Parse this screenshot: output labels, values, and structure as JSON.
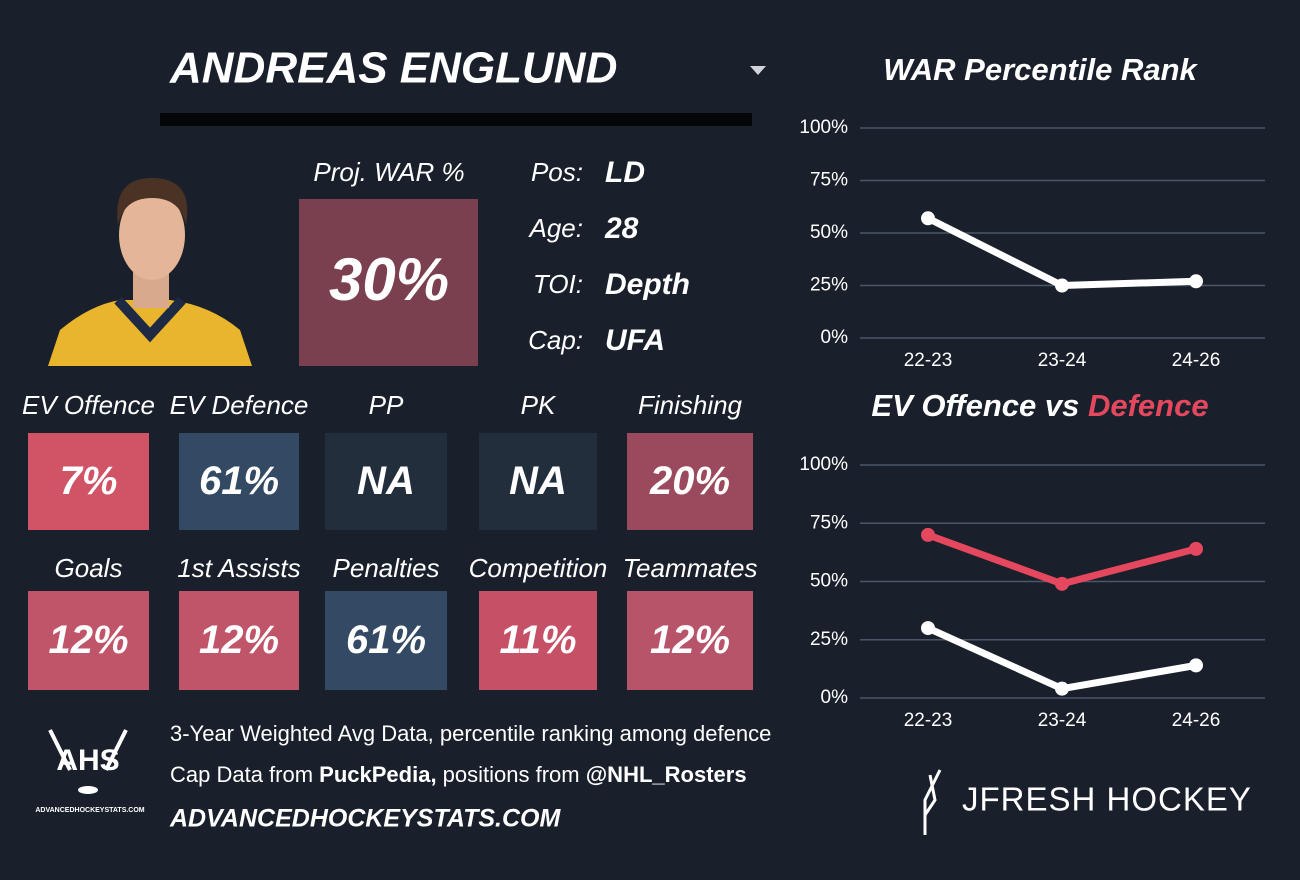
{
  "header": {
    "player": "ANDREAS ENGLUND"
  },
  "proj_war": {
    "label": "Proj. WAR %",
    "value": "30%",
    "color": "#7a4050"
  },
  "bio": [
    {
      "label": "Pos:",
      "value": "LD"
    },
    {
      "label": "Age:",
      "value": "28"
    },
    {
      "label": "TOI:",
      "value": "Depth"
    },
    {
      "label": "Cap:",
      "value": "UFA"
    }
  ],
  "tiles": [
    [
      {
        "label": "EV Offence",
        "value": "7%",
        "color": "#d05466"
      },
      {
        "label": "EV Defence",
        "value": "61%",
        "color": "#344a64"
      },
      {
        "label": "PP",
        "value": "NA",
        "color": "#222e3c"
      },
      {
        "label": "PK",
        "value": "NA",
        "color": "#222e3c"
      },
      {
        "label": "Finishing",
        "value": "20%",
        "color": "#9a4a5c"
      }
    ],
    [
      {
        "label": "Goals",
        "value": "12%",
        "color": "#c05468"
      },
      {
        "label": "1st Assists",
        "value": "12%",
        "color": "#c05468"
      },
      {
        "label": "Penalties",
        "value": "61%",
        "color": "#344a64"
      },
      {
        "label": "Competition",
        "value": "11%",
        "color": "#c65065"
      },
      {
        "label": "Teammates",
        "value": "12%",
        "color": "#b8546a"
      }
    ]
  ],
  "footer": {
    "logo": "AHS",
    "logo_sub": "ADVANCEDHOCKEYSTATS.COM",
    "lines": [
      [
        {
          "text": "3-Year Weighted Avg Data, percentile ranking among defence",
          "bold": false
        }
      ],
      [
        {
          "text": "Cap Data from ",
          "bold": false
        },
        {
          "text": "PuckPedia,",
          "bold": true
        },
        {
          "text": " positions from ",
          "bold": false
        },
        {
          "text": "@NHL_Rosters",
          "bold": true
        }
      ]
    ],
    "site": "ADVANCEDHOCKEYSTATS.COM",
    "brand": "JFRESH HOCKEY"
  },
  "chart_data": [
    {
      "type": "line",
      "title": "WAR Percentile Rank",
      "categories": [
        "22-23",
        "23-24",
        "24-26"
      ],
      "series": [
        {
          "color": "#ffffff",
          "values": [
            57,
            25,
            27
          ]
        }
      ],
      "ylim": [
        0,
        100
      ],
      "yticks": [
        {
          "value": 0,
          "label": "0%"
        },
        {
          "value": 25,
          "label": "25%"
        },
        {
          "value": 50,
          "label": "50%"
        },
        {
          "value": 75,
          "label": "75%"
        },
        {
          "value": 100,
          "label": "100%"
        }
      ],
      "grid": true
    },
    {
      "type": "line",
      "title_parts": [
        {
          "text": "EV Offence vs ",
          "color": "#ffffff"
        },
        {
          "text": "Defence",
          "color": "#e5475e"
        }
      ],
      "categories": [
        "22-23",
        "23-24",
        "24-26"
      ],
      "series": [
        {
          "color": "#e5475e",
          "values": [
            70,
            49,
            64
          ]
        },
        {
          "color": "#ffffff",
          "values": [
            30,
            4,
            14
          ]
        }
      ],
      "ylim": [
        0,
        100
      ],
      "yticks": [
        {
          "value": 0,
          "label": "0%"
        },
        {
          "value": 25,
          "label": "25%"
        },
        {
          "value": 50,
          "label": "50%"
        },
        {
          "value": 75,
          "label": "75%"
        },
        {
          "value": 100,
          "label": "100%"
        }
      ],
      "grid": true
    }
  ]
}
